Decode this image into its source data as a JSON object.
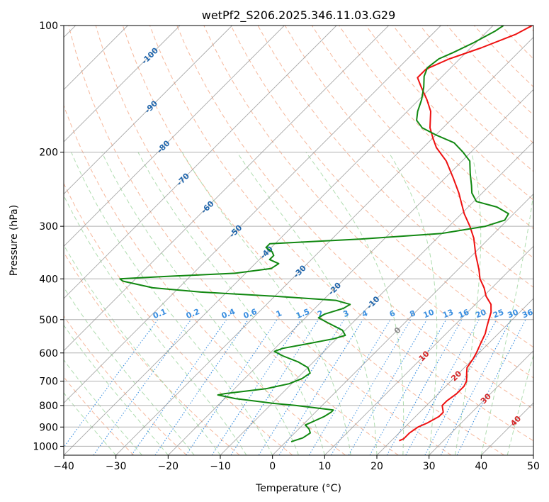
{
  "chart_data": {
    "type": "line",
    "title": "wetPf2_S206.2025.346.11.03.G29",
    "xlabel": "Temperature (°C)",
    "ylabel": "Pressure (hPa)",
    "xlim": [
      -40,
      50
    ],
    "ylim": [
      1050,
      100
    ],
    "y_scale": "log",
    "x_ticks": [
      "−40",
      "−30",
      "−20",
      "−10",
      "0",
      "10",
      "20",
      "30",
      "40",
      "50"
    ],
    "y_ticks": [
      "100",
      "200",
      "300",
      "400",
      "500",
      "600",
      "700",
      "800",
      "900",
      "1000"
    ],
    "grid": true,
    "skew": true,
    "colors": {
      "temperature": "#ee1111",
      "dewpoint": "#118811",
      "dry_adiabat": "#f4a582",
      "moist_adiabat": "#8fcf8f",
      "mixing_ratio": "#3b8fe0",
      "isotherm": "#8c8c8c",
      "freezing_label": "#888888",
      "isotherm_label_neg": "#2166ac",
      "isotherm_label_pos": "#d62728"
    },
    "isotherm_labels": [
      {
        "t": -100,
        "text": "-100"
      },
      {
        "t": -90,
        "text": "-90"
      },
      {
        "t": -80,
        "text": "-80"
      },
      {
        "t": -70,
        "text": "-70"
      },
      {
        "t": -60,
        "text": "-60"
      },
      {
        "t": -50,
        "text": "-50"
      },
      {
        "t": -40,
        "text": "-40"
      },
      {
        "t": -30,
        "text": "-30"
      },
      {
        "t": -20,
        "text": "-20"
      },
      {
        "t": -10,
        "text": "-10"
      },
      {
        "t": 0,
        "text": "0"
      },
      {
        "t": 10,
        "text": "10"
      },
      {
        "t": 20,
        "text": "20"
      },
      {
        "t": 30,
        "text": "30"
      },
      {
        "t": 40,
        "text": "40"
      }
    ],
    "mixing_ratio_labels": [
      "0.1",
      "0.2",
      "0.4",
      "0.6",
      "1",
      "1.5",
      "2",
      "3",
      "4",
      "6",
      "8",
      "10",
      "13",
      "16",
      "20",
      "25",
      "30",
      "36"
    ],
    "series": [
      {
        "key": "temperature",
        "points": [
          {
            "p": 970,
            "t": 21.5
          },
          {
            "p": 960,
            "t": 22.0
          },
          {
            "p": 930,
            "t": 22.0
          },
          {
            "p": 900,
            "t": 22.5
          },
          {
            "p": 880,
            "t": 23.5
          },
          {
            "p": 850,
            "t": 24.5
          },
          {
            "p": 830,
            "t": 24.5
          },
          {
            "p": 800,
            "t": 23.0
          },
          {
            "p": 780,
            "t": 23.0
          },
          {
            "p": 750,
            "t": 23.5
          },
          {
            "p": 720,
            "t": 23.5
          },
          {
            "p": 700,
            "t": 23.0
          },
          {
            "p": 670,
            "t": 21.5
          },
          {
            "p": 650,
            "t": 20.5
          },
          {
            "p": 620,
            "t": 20.0
          },
          {
            "p": 600,
            "t": 19.5
          },
          {
            "p": 570,
            "t": 18.5
          },
          {
            "p": 540,
            "t": 17.5
          },
          {
            "p": 520,
            "t": 16.5
          },
          {
            "p": 500,
            "t": 15.5
          },
          {
            "p": 480,
            "t": 14.5
          },
          {
            "p": 460,
            "t": 13.0
          },
          {
            "p": 440,
            "t": 10.5
          },
          {
            "p": 420,
            "t": 8.5
          },
          {
            "p": 400,
            "t": 6.0
          },
          {
            "p": 380,
            "t": 4.0
          },
          {
            "p": 350,
            "t": 0.5
          },
          {
            "p": 320,
            "t": -3.0
          },
          {
            "p": 300,
            "t": -6.0
          },
          {
            "p": 280,
            "t": -9.5
          },
          {
            "p": 250,
            "t": -14.5
          },
          {
            "p": 230,
            "t": -18.5
          },
          {
            "p": 210,
            "t": -23.0
          },
          {
            "p": 195,
            "t": -27.5
          },
          {
            "p": 185,
            "t": -30.0
          },
          {
            "p": 175,
            "t": -32.5
          },
          {
            "p": 160,
            "t": -35.5
          },
          {
            "p": 150,
            "t": -38.5
          },
          {
            "p": 140,
            "t": -42.0
          },
          {
            "p": 133,
            "t": -44.5
          },
          {
            "p": 127,
            "t": -44.5
          },
          {
            "p": 120,
            "t": -42.0
          },
          {
            "p": 113,
            "t": -38.0
          },
          {
            "p": 105,
            "t": -34.0
          },
          {
            "p": 100,
            "t": -32.5
          }
        ]
      },
      {
        "key": "dewpoint",
        "points": [
          {
            "p": 975,
            "t": 1.0
          },
          {
            "p": 955,
            "t": 2.5
          },
          {
            "p": 930,
            "t": 3.0
          },
          {
            "p": 910,
            "t": 2.0
          },
          {
            "p": 890,
            "t": 0.5
          },
          {
            "p": 870,
            "t": 1.5
          },
          {
            "p": 850,
            "t": 2.5
          },
          {
            "p": 830,
            "t": 3.0
          },
          {
            "p": 820,
            "t": 3.0
          },
          {
            "p": 800,
            "t": -5.0
          },
          {
            "p": 790,
            "t": -10.0
          },
          {
            "p": 770,
            "t": -18.0
          },
          {
            "p": 755,
            "t": -22.0
          },
          {
            "p": 750,
            "t": -21.0
          },
          {
            "p": 740,
            "t": -17.5
          },
          {
            "p": 730,
            "t": -14.0
          },
          {
            "p": 710,
            "t": -10.5
          },
          {
            "p": 690,
            "t": -9.0
          },
          {
            "p": 670,
            "t": -8.5
          },
          {
            "p": 650,
            "t": -10.0
          },
          {
            "p": 630,
            "t": -13.0
          },
          {
            "p": 610,
            "t": -17.0
          },
          {
            "p": 595,
            "t": -19.5
          },
          {
            "p": 585,
            "t": -18.5
          },
          {
            "p": 570,
            "t": -14.5
          },
          {
            "p": 555,
            "t": -10.5
          },
          {
            "p": 545,
            "t": -9.0
          },
          {
            "p": 530,
            "t": -10.5
          },
          {
            "p": 510,
            "t": -14.5
          },
          {
            "p": 495,
            "t": -17.5
          },
          {
            "p": 485,
            "t": -17.0
          },
          {
            "p": 470,
            "t": -14.5
          },
          {
            "p": 460,
            "t": -14.0
          },
          {
            "p": 450,
            "t": -17.5
          },
          {
            "p": 440,
            "t": -30.0
          },
          {
            "p": 430,
            "t": -45.0
          },
          {
            "p": 420,
            "t": -55.0
          },
          {
            "p": 405,
            "t": -62.0
          },
          {
            "p": 400,
            "t": -63.0
          },
          {
            "p": 395,
            "t": -55.0
          },
          {
            "p": 388,
            "t": -42.0
          },
          {
            "p": 378,
            "t": -36.0
          },
          {
            "p": 368,
            "t": -35.5
          },
          {
            "p": 360,
            "t": -38.0
          },
          {
            "p": 352,
            "t": -38.0
          },
          {
            "p": 345,
            "t": -39.0
          },
          {
            "p": 337,
            "t": -41.0
          },
          {
            "p": 330,
            "t": -41.0
          },
          {
            "p": 322,
            "t": -25.0
          },
          {
            "p": 312,
            "t": -10.0
          },
          {
            "p": 300,
            "t": -3.0
          },
          {
            "p": 290,
            "t": -0.5
          },
          {
            "p": 280,
            "t": -1.0
          },
          {
            "p": 270,
            "t": -4.5
          },
          {
            "p": 262,
            "t": -9.5
          },
          {
            "p": 250,
            "t": -12.0
          },
          {
            "p": 240,
            "t": -13.5
          },
          {
            "p": 225,
            "t": -16.0
          },
          {
            "p": 210,
            "t": -18.5
          },
          {
            "p": 200,
            "t": -21.5
          },
          {
            "p": 190,
            "t": -25.0
          },
          {
            "p": 182,
            "t": -30.0
          },
          {
            "p": 175,
            "t": -34.0
          },
          {
            "p": 168,
            "t": -36.5
          },
          {
            "p": 160,
            "t": -38.0
          },
          {
            "p": 150,
            "t": -39.5
          },
          {
            "p": 140,
            "t": -41.5
          },
          {
            "p": 132,
            "t": -43.5
          },
          {
            "p": 126,
            "t": -44.5
          },
          {
            "p": 120,
            "t": -44.0
          },
          {
            "p": 116,
            "t": -42.5
          },
          {
            "p": 110,
            "t": -40.5
          },
          {
            "p": 103,
            "t": -38.5
          },
          {
            "p": 100,
            "t": -38.0
          }
        ]
      }
    ]
  }
}
